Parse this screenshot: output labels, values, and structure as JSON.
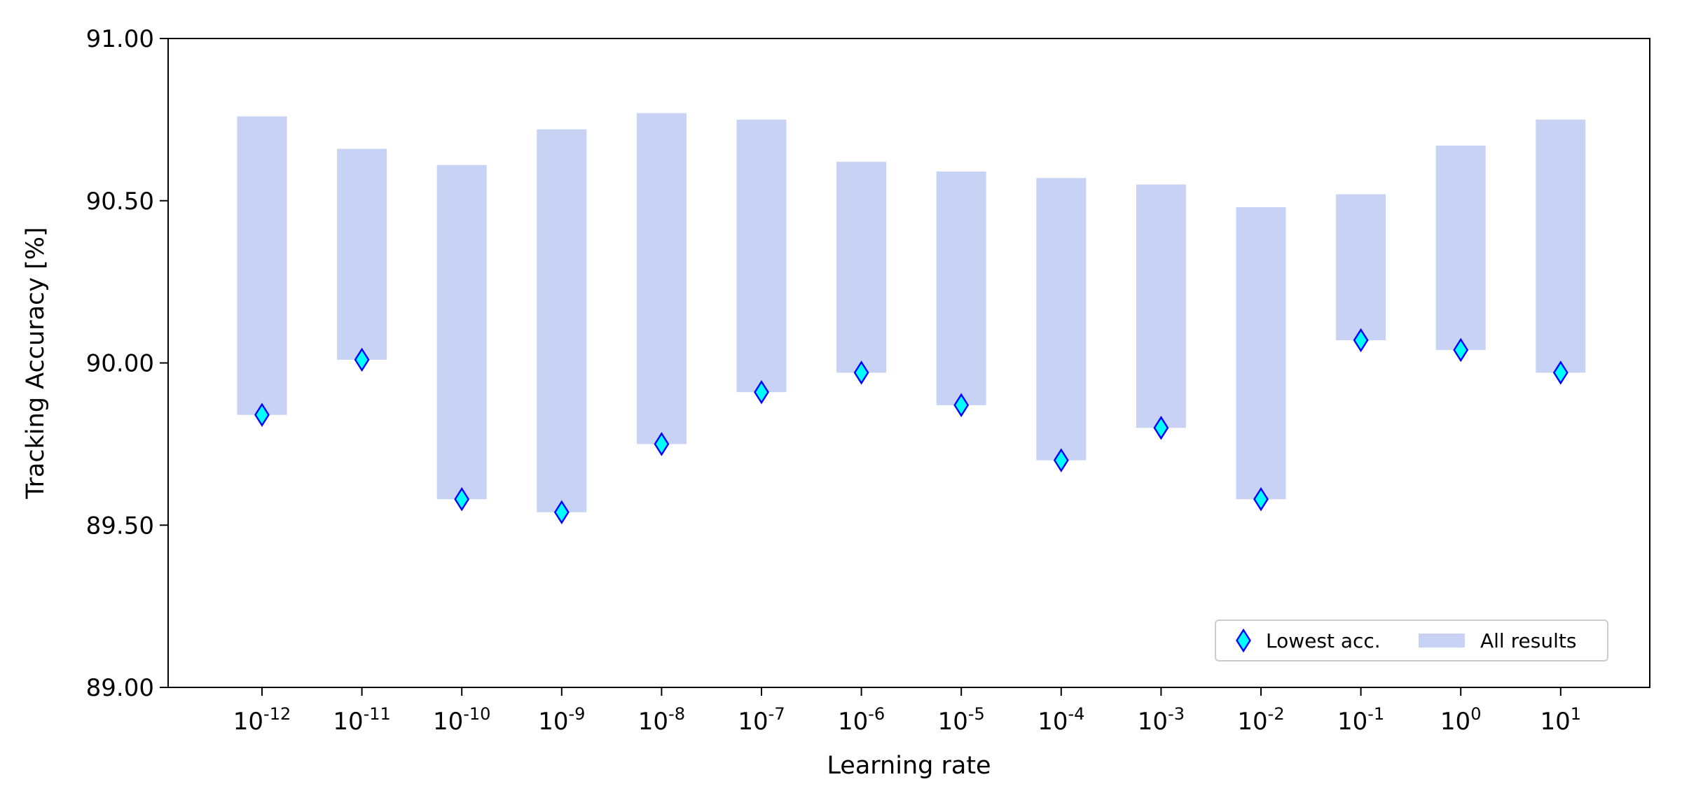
{
  "chart_data": {
    "type": "bar",
    "xlabel": "Learning rate",
    "ylabel": "Tracking Accuracy [%]",
    "ylim": [
      89.0,
      91.0
    ],
    "yticks": [
      "89.00",
      "89.50",
      "90.00",
      "90.50",
      "91.00"
    ],
    "categories": [
      {
        "base": "10",
        "exp": "-12"
      },
      {
        "base": "10",
        "exp": "-11"
      },
      {
        "base": "10",
        "exp": "-10"
      },
      {
        "base": "10",
        "exp": "-9"
      },
      {
        "base": "10",
        "exp": "-8"
      },
      {
        "base": "10",
        "exp": "-7"
      },
      {
        "base": "10",
        "exp": "-6"
      },
      {
        "base": "10",
        "exp": "-5"
      },
      {
        "base": "10",
        "exp": "-4"
      },
      {
        "base": "10",
        "exp": "-3"
      },
      {
        "base": "10",
        "exp": "-2"
      },
      {
        "base": "10",
        "exp": "-1"
      },
      {
        "base": "10",
        "exp": "0"
      },
      {
        "base": "10",
        "exp": "1"
      }
    ],
    "series": [
      {
        "name": "All results",
        "kind": "range-bar",
        "color": "#c7d2f5",
        "low": [
          89.84,
          90.01,
          89.58,
          89.54,
          89.75,
          89.91,
          89.97,
          89.87,
          89.7,
          89.8,
          89.58,
          90.07,
          90.04,
          89.97
        ],
        "high": [
          90.76,
          90.66,
          90.61,
          90.72,
          90.77,
          90.75,
          90.62,
          90.59,
          90.57,
          90.55,
          90.48,
          90.52,
          90.67,
          90.75
        ]
      },
      {
        "name": "Lowest acc.",
        "kind": "marker",
        "marker": "thin-diamond",
        "color": "#00ffff",
        "edge_color": "#0000ff",
        "values": [
          89.84,
          90.01,
          89.58,
          89.54,
          89.75,
          89.91,
          89.97,
          89.87,
          89.7,
          89.8,
          89.58,
          90.07,
          90.04,
          89.97
        ]
      }
    ],
    "legend": {
      "placement": "lower-right",
      "entries": [
        "Lowest acc.",
        "All results"
      ]
    },
    "grid": false
  }
}
